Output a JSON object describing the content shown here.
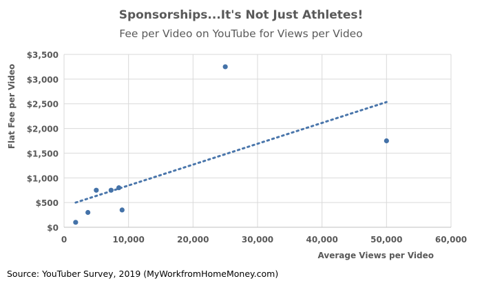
{
  "chart_data": {
    "type": "scatter",
    "title": "Sponsorships...It's Not Just Athletes!",
    "subtitle": "Fee per Video on YouTube for Views per Video",
    "xlabel": "Average Views per Video",
    "ylabel": "Flat Fee per Video",
    "xlim": [
      0,
      60000
    ],
    "ylim": [
      0,
      3500
    ],
    "x_ticks": [
      "0",
      "10,000",
      "20,000",
      "30,000",
      "40,000",
      "50,000",
      "60,000"
    ],
    "y_ticks": [
      "$0",
      "$500",
      "$1,000",
      "$1,500",
      "$2,000",
      "$2,500",
      "$3,000",
      "$3,500"
    ],
    "grid": true,
    "points": [
      {
        "x": 1800,
        "y": 100
      },
      {
        "x": 3700,
        "y": 300
      },
      {
        "x": 5000,
        "y": 750
      },
      {
        "x": 7300,
        "y": 750
      },
      {
        "x": 8500,
        "y": 800
      },
      {
        "x": 9000,
        "y": 350
      },
      {
        "x": 25000,
        "y": 3250
      },
      {
        "x": 50000,
        "y": 1750
      }
    ],
    "trendline": "linear",
    "colors": {
      "points": "#4472a8",
      "trendline": "#4a76ab",
      "grid": "#d9d9d9"
    }
  },
  "source": "Source: YouTuber Survey, 2019 (MyWorkfromHomeMoney.com)"
}
